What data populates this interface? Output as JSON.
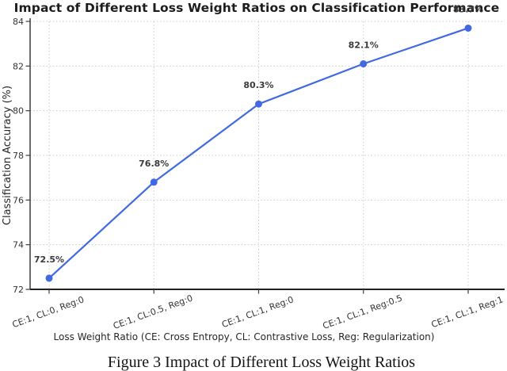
{
  "title": "Impact of Different Loss Weight Ratios on Classification Performance",
  "caption": "Figure 3 Impact of Different Loss Weight Ratios",
  "chart_data": {
    "type": "line",
    "title": "Impact of Different Loss Weight Ratios on Classification Performance",
    "xlabel": "Loss Weight Ratio (CE: Cross Entropy, CL: Contrastive Loss, Reg: Regularization)",
    "ylabel": "Classification Accuracy (%)",
    "categories": [
      "CE:1, CL:0, Reg:0",
      "CE:1, CL:0.5, Reg:0",
      "CE:1, CL:1, Reg:0",
      "CE:1, CL:1, Reg:0.5",
      "CE:1, CL:1, Reg:1"
    ],
    "values": [
      72.5,
      76.8,
      80.3,
      82.1,
      83.7
    ],
    "point_labels": [
      "72.5%",
      "76.8%",
      "80.3%",
      "82.1%",
      "83.7%"
    ],
    "ylim": [
      72,
      84
    ],
    "yticks": [
      72,
      74,
      76,
      78,
      80,
      82,
      84
    ],
    "grid": true,
    "legend": "none",
    "line_color": "#4169E1",
    "marker": "circle",
    "grid_color": "#cbcbcb",
    "spine_color": "#3c3c3c",
    "tick_color": "#333333",
    "point_label_color": "#3a3a3a",
    "x_tick_rotation_deg": 20
  }
}
